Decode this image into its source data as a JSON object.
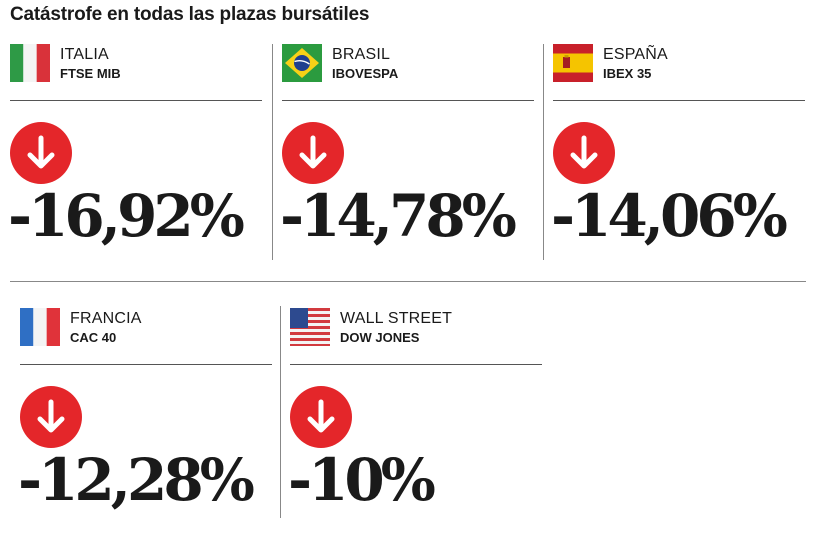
{
  "title": "Catástrofe en todas las plazas bursátiles",
  "colors": {
    "accent_red": "#e4262a",
    "text": "#1a1a1a"
  },
  "panels": [
    {
      "country": "ITALIA",
      "index": "FTSE MIB",
      "change": "-16,92%",
      "flag": "italy-flag-icon",
      "direction": "down"
    },
    {
      "country": "BRASIL",
      "index": "IBOVESPA",
      "change": "-14,78%",
      "flag": "brazil-flag-icon",
      "direction": "down"
    },
    {
      "country": "ESPAÑA",
      "index": "IBEX 35",
      "change": "-14,06%",
      "flag": "spain-flag-icon",
      "direction": "down"
    },
    {
      "country": "FRANCIA",
      "index": "CAC 40",
      "change": "-12,28%",
      "flag": "france-flag-icon",
      "direction": "down"
    },
    {
      "country": "WALL STREET",
      "index": "DOW JONES",
      "change": "-10%",
      "flag": "usa-flag-icon",
      "direction": "down"
    }
  ]
}
